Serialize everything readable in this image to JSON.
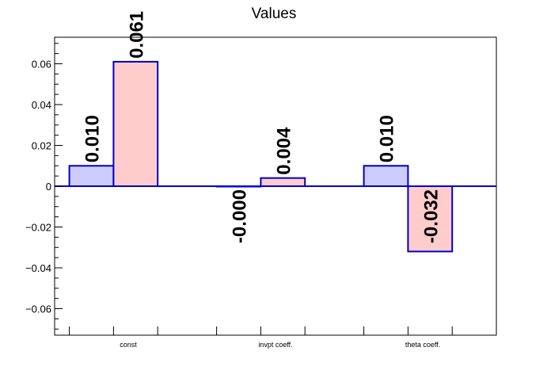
{
  "chart_data": {
    "type": "bar",
    "title": "Values",
    "xlabel": "",
    "ylabel": "",
    "categories": [
      "const",
      "invpt coeff.",
      "theta coeff."
    ],
    "series": [
      {
        "values": [
          0.01,
          -0.0001,
          0.01
        ],
        "labels": [
          "0.010",
          "-0.000",
          "0.010"
        ],
        "color": "#ccccff",
        "edge_color": "#0000cc"
      },
      {
        "values": [
          0.061,
          0.004,
          -0.032
        ],
        "labels": [
          "0.061",
          "0.004",
          "-0.032"
        ],
        "color": "#ffcccc",
        "edge_color": "#0000cc"
      }
    ],
    "ylim": [
      -0.073,
      0.073
    ],
    "yticks": [
      -0.06,
      -0.04,
      -0.02,
      0,
      0.02,
      0.04,
      0.06
    ],
    "ytick_labels": [
      "−0.06",
      "−0.04",
      "−0.02",
      "0",
      "0.02",
      "0.04",
      "0.06"
    ],
    "grid": false,
    "legend": "none",
    "zero_line_color": "#0000cc"
  }
}
